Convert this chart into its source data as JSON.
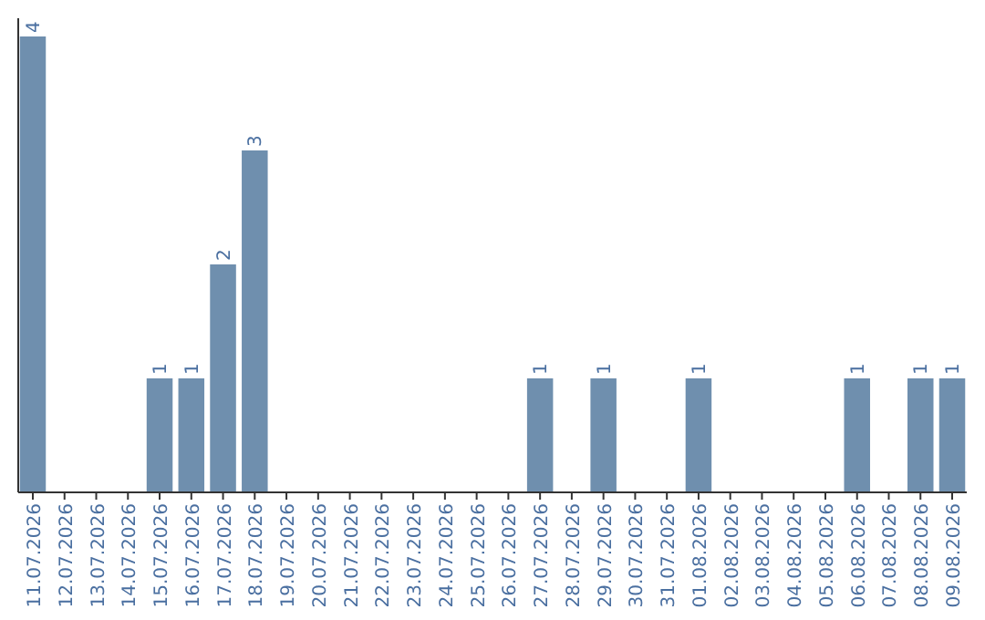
{
  "chart_data": {
    "type": "bar",
    "categories": [
      "11.07.2026",
      "12.07.2026",
      "13.07.2026",
      "14.07.2026",
      "15.07.2026",
      "16.07.2026",
      "17.07.2026",
      "18.07.2026",
      "19.07.2026",
      "20.07.2026",
      "21.07.2026",
      "22.07.2026",
      "23.07.2026",
      "24.07.2026",
      "25.07.2026",
      "26.07.2026",
      "27.07.2026",
      "28.07.2026",
      "29.07.2026",
      "30.07.2026",
      "31.07.2026",
      "01.08.2026",
      "02.08.2026",
      "03.08.2026",
      "04.08.2026",
      "05.08.2026",
      "06.08.2026",
      "07.08.2026",
      "08.08.2026",
      "09.08.2026"
    ],
    "values": [
      4,
      0,
      0,
      0,
      1,
      1,
      2,
      3,
      0,
      0,
      0,
      0,
      0,
      0,
      0,
      0,
      1,
      0,
      1,
      0,
      0,
      1,
      0,
      0,
      0,
      0,
      1,
      0,
      1,
      1
    ],
    "value_labels": [
      "4",
      null,
      null,
      null,
      "1",
      "1",
      "2",
      "3",
      null,
      null,
      null,
      null,
      null,
      null,
      null,
      null,
      "1",
      null,
      "1",
      null,
      null,
      "1",
      null,
      null,
      null,
      null,
      "1",
      null,
      "1",
      "1"
    ],
    "color": "#6f8fae"
  }
}
